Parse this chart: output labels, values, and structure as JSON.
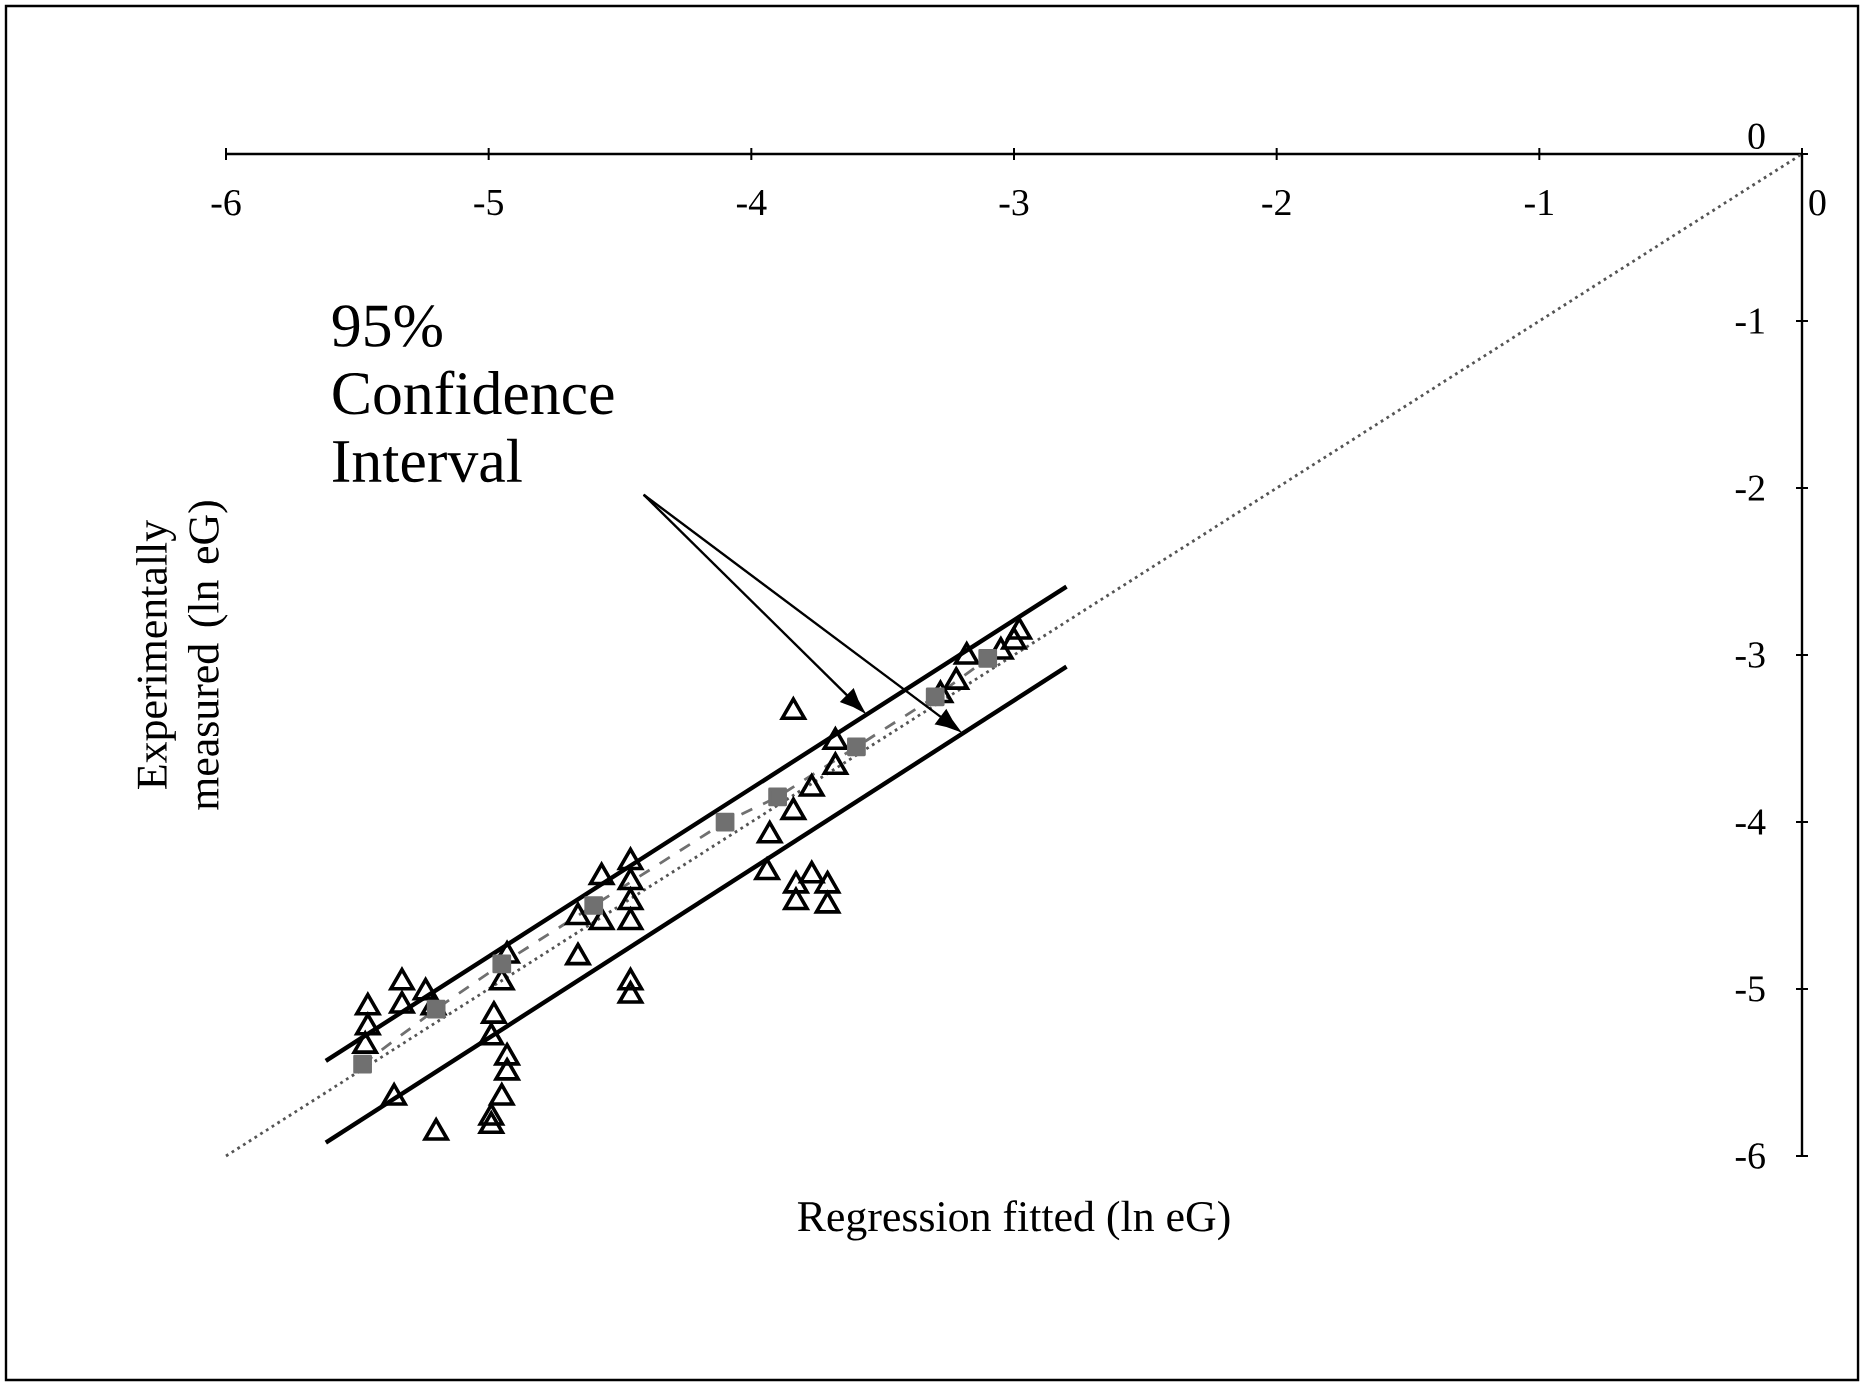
{
  "chart_data": {
    "type": "scatter",
    "xlabel": "Regression fitted (ln eG)",
    "ylabel": "Experimentally measured (ln eG)",
    "annotations": [
      "95% Confidence Interval"
    ],
    "xlim": [
      -6,
      0
    ],
    "ylim": [
      -6,
      0
    ],
    "xticks": [
      -6,
      -5,
      -4,
      -3,
      -2,
      -1,
      0
    ],
    "yticks": [
      -6,
      -5,
      -4,
      -3,
      -2,
      -1,
      0
    ],
    "grid": false,
    "series": [
      {
        "marker": "triangle",
        "color": "#000000",
        "x": [
          -5.46,
          -5.46,
          -5.47,
          -5.33,
          -5.33,
          -5.24,
          -5.21,
          -5.36,
          -5.2,
          -4.93,
          -4.95,
          -4.98,
          -4.99,
          -4.93,
          -4.93,
          -4.95,
          -4.99,
          -4.99,
          -4.57,
          -4.66,
          -4.66,
          -4.46,
          -4.46,
          -4.46,
          -4.46,
          -4.57,
          -4.46,
          -4.46,
          -3.94,
          -3.93,
          -3.84,
          -3.77,
          -3.83,
          -3.83,
          -3.77,
          -3.71,
          -3.71,
          -3.84,
          -3.68,
          -3.68,
          -3.18,
          -2.98,
          -3.22,
          -3.05,
          -3.28,
          -3.0
        ],
        "values": [
          -5.11,
          -5.23,
          -5.34,
          -4.96,
          -5.1,
          -5.02,
          -5.11,
          -5.65,
          -5.86,
          -4.8,
          -4.96,
          -5.16,
          -5.29,
          -5.41,
          -5.5,
          -5.65,
          -5.77,
          -5.82,
          -4.33,
          -4.57,
          -4.81,
          -4.24,
          -4.36,
          -4.48,
          -4.6,
          -4.6,
          -4.96,
          -5.04,
          -4.3,
          -4.08,
          -3.94,
          -3.8,
          -4.38,
          -4.48,
          -4.32,
          -4.38,
          -4.5,
          -3.34,
          -3.52,
          -3.67,
          -3.01,
          -2.86,
          -3.16,
          -2.98,
          -3.24,
          -2.92
        ]
      },
      {
        "type": "line",
        "marker": "none",
        "line_style": "solid",
        "color": "#000000",
        "x": [
          -5.62,
          -2.8
        ],
        "values": [
          -5.43,
          -2.59
        ]
      },
      {
        "type": "line",
        "marker": "none",
        "line_style": "solid",
        "color": "#000000",
        "x": [
          -5.62,
          -2.8
        ],
        "values": [
          -5.92,
          -3.07
        ]
      },
      {
        "type": "line",
        "line_style": "dotted",
        "color": "#555555",
        "x": [
          -6,
          0
        ],
        "values": [
          -6,
          0
        ]
      },
      {
        "type": "line",
        "marker": "square",
        "line_style": "dashed",
        "color": "#707070",
        "x": [
          -5.48,
          -5.2,
          -4.95,
          -4.6,
          -4.1,
          -3.9,
          -3.6,
          -3.3,
          -3.1
        ],
        "values": [
          -5.45,
          -5.12,
          -4.85,
          -4.5,
          -4.0,
          -3.85,
          -3.55,
          -3.25,
          -3.02
        ]
      }
    ]
  }
}
